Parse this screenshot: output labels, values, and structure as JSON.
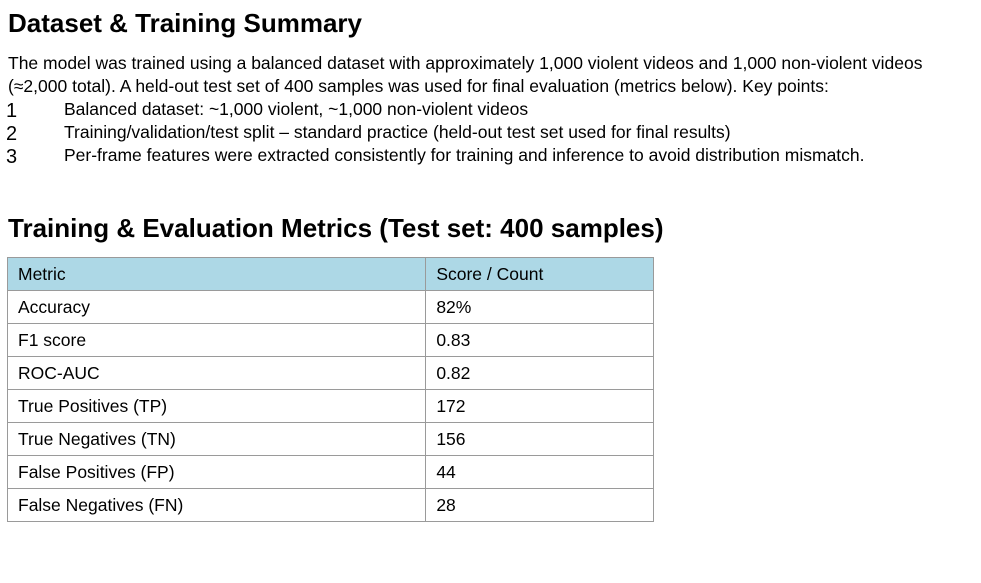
{
  "summary": {
    "title": "Dataset & Training Summary",
    "intro": "The model was trained using a balanced dataset with approximately 1,000 violent videos and 1,000 non-violent videos (≈2,000 total). A held-out test set of 400 samples was used for final evaluation (metrics below). Key points:",
    "points": [
      {
        "number": "1",
        "text": "Balanced dataset: ~1,000 violent, ~1,000 non-violent videos"
      },
      {
        "number": "2",
        "text": "Training/validation/test split – standard practice (held-out test set used for final results)"
      },
      {
        "number": "3",
        "text": "Per-frame features were extracted consistently for training and inference to avoid distribution mismatch."
      }
    ]
  },
  "metrics": {
    "title": "Training & Evaluation Metrics (Test set: 400 samples)",
    "header_color": "#add8e6",
    "columns": [
      "Metric",
      "Score / Count"
    ],
    "rows": [
      {
        "metric": "Accuracy",
        "value": "82%"
      },
      {
        "metric": "F1 score",
        "value": "0.83"
      },
      {
        "metric": "ROC-AUC",
        "value": "0.82"
      },
      {
        "metric": "True Positives (TP)",
        "value": "172"
      },
      {
        "metric": "True Negatives (TN)",
        "value": "156"
      },
      {
        "metric": "False Positives (FP)",
        "value": "44"
      },
      {
        "metric": "False Negatives (FN)",
        "value": "28"
      }
    ]
  }
}
